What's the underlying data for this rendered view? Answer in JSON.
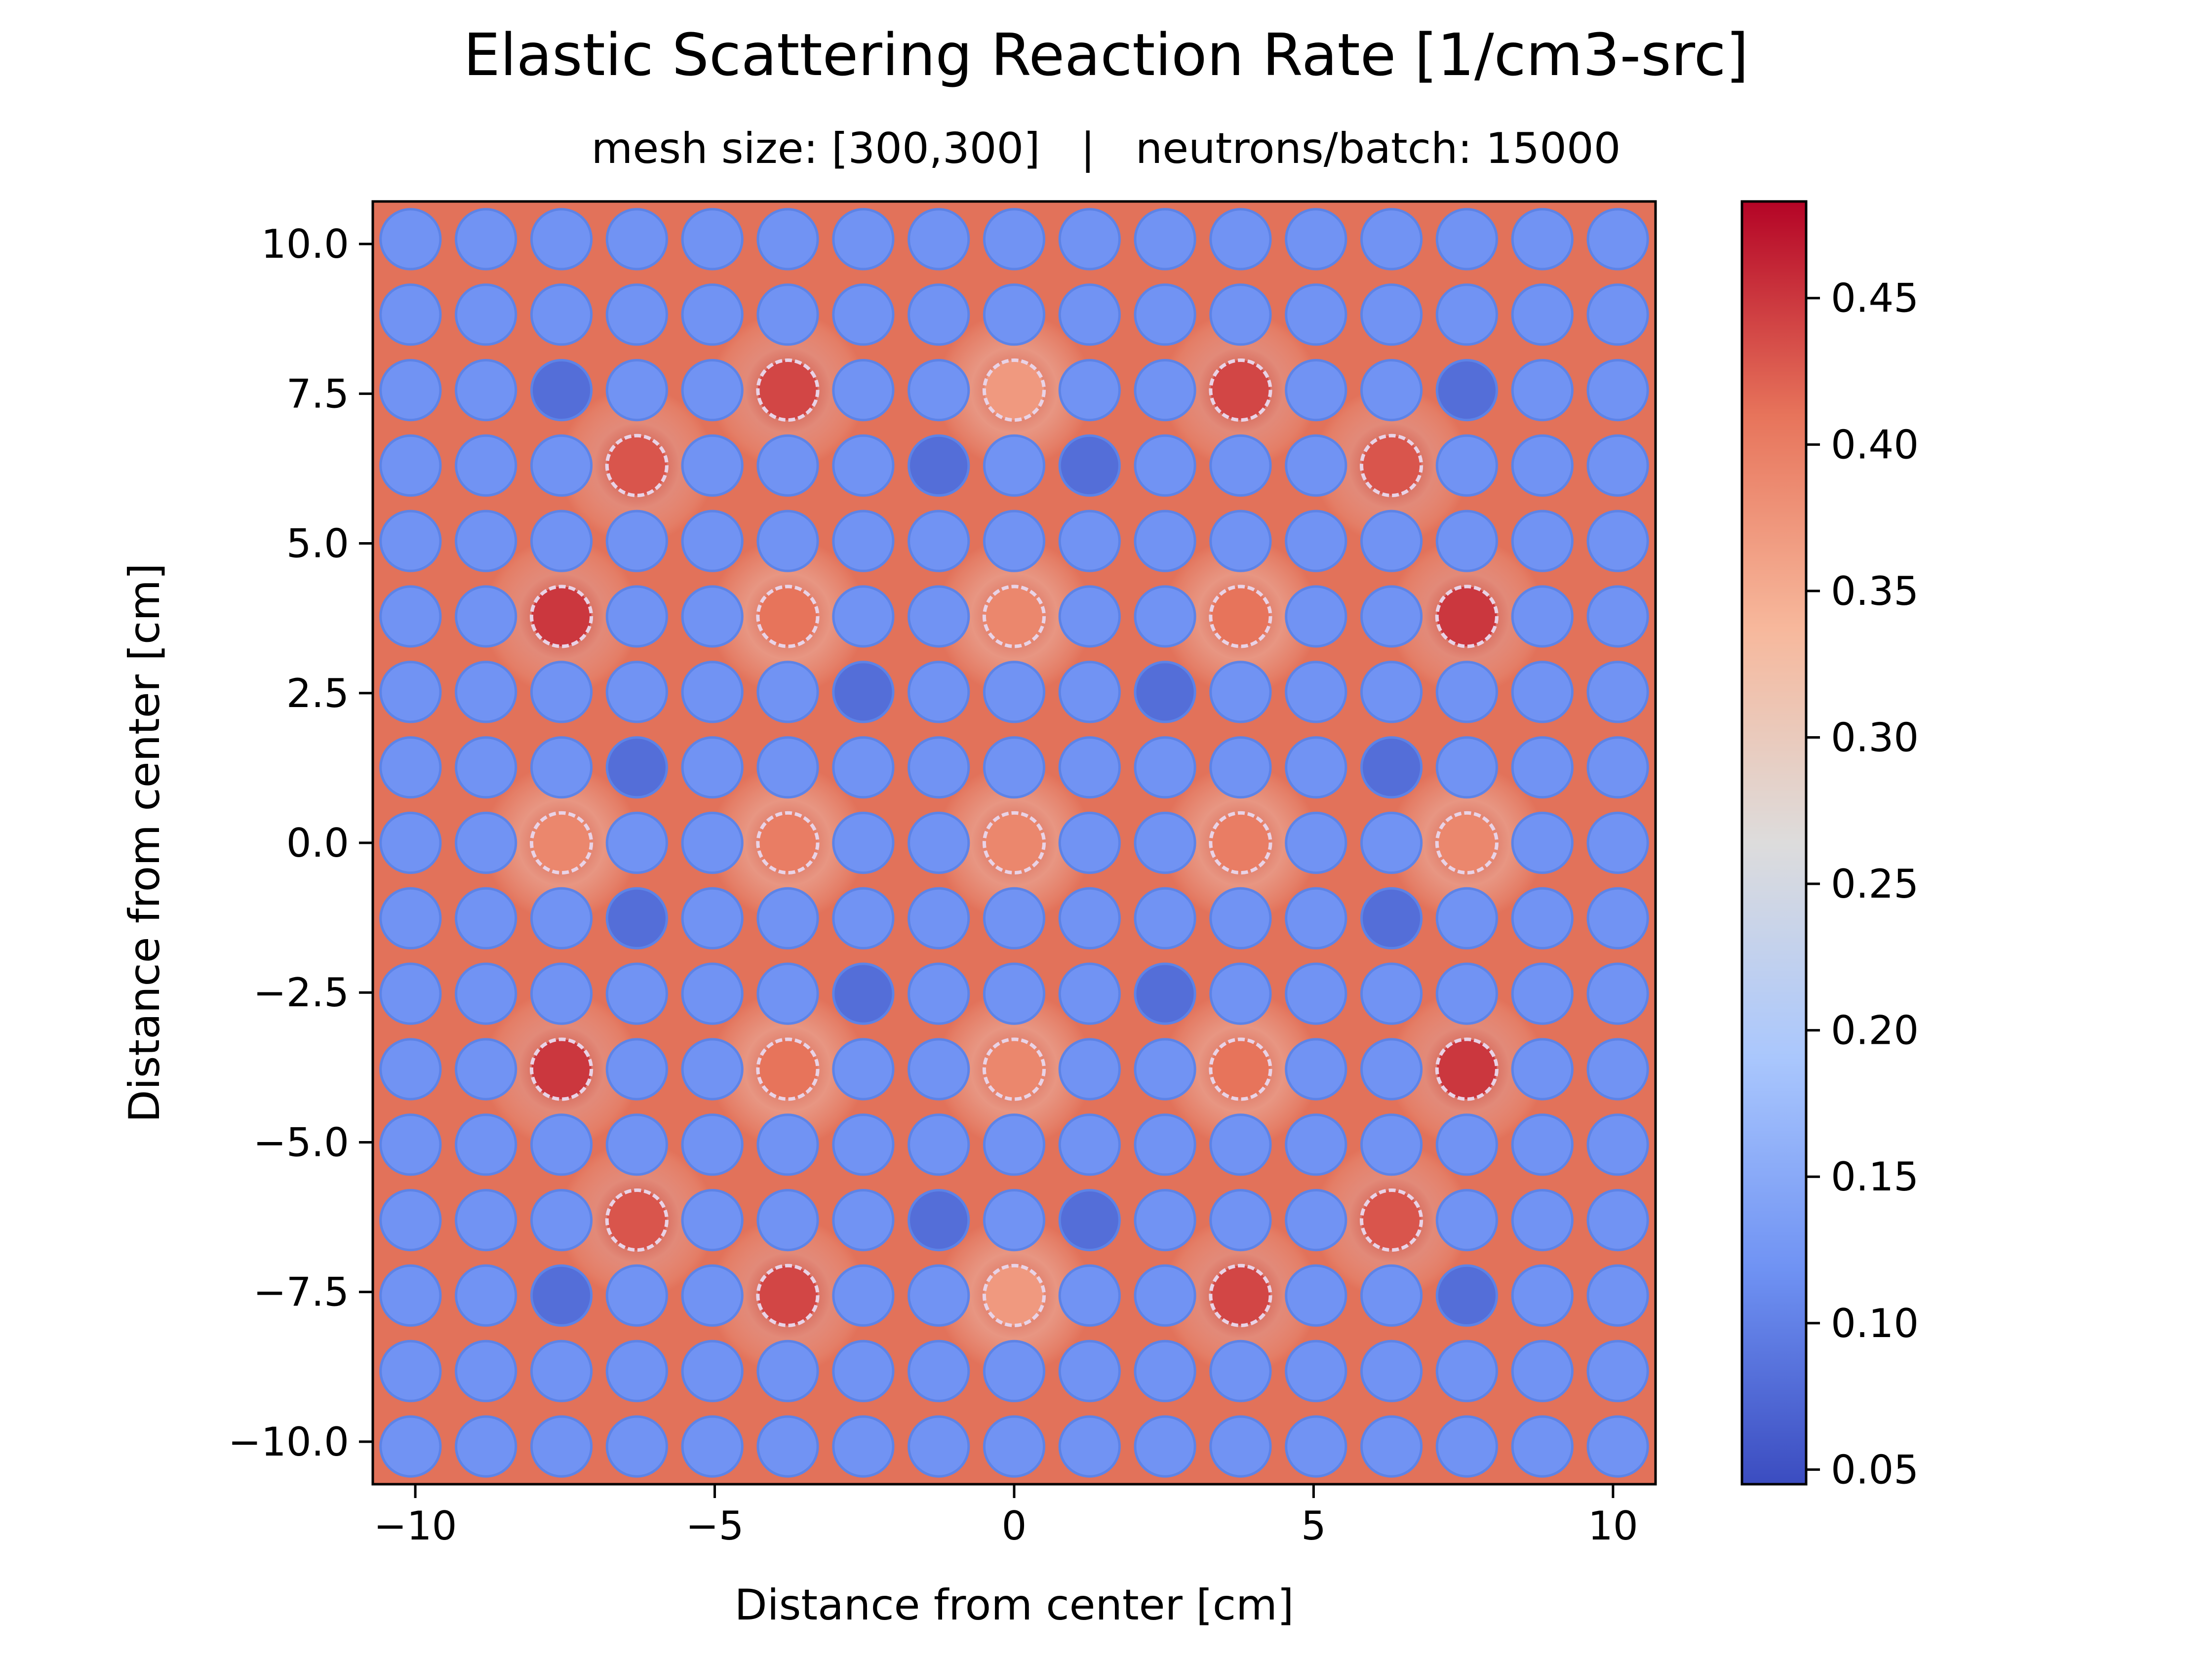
{
  "chart_data": {
    "type": "heatmap",
    "title": "Elastic Scattering Reaction Rate [1/cm3-src]",
    "subtitle": "mesh size: [300,300]   |   neutrons/batch: 15000",
    "xlabel": "Distance from center [cm]",
    "ylabel": "Distance from center [cm]",
    "xlim": [
      -10.71,
      10.71
    ],
    "ylim": [
      -10.71,
      10.71
    ],
    "x_ticks": [
      -10,
      -5,
      0,
      5,
      10
    ],
    "x_tick_labels": [
      "−10",
      "−5",
      "0",
      "5",
      "10"
    ],
    "y_ticks": [
      10.0,
      7.5,
      5.0,
      2.5,
      0.0,
      -2.5,
      -5.0,
      -7.5,
      -10.0
    ],
    "y_tick_labels": [
      "10.0",
      "7.5",
      "5.0",
      "2.5",
      "0.0",
      "−2.5",
      "−5.0",
      "−7.5",
      "−10.0"
    ],
    "colormap": "coolwarm",
    "colorbar": {
      "min": 0.045,
      "max": 0.483,
      "ticks": [
        0.05,
        0.1,
        0.15,
        0.2,
        0.25,
        0.3,
        0.35,
        0.4,
        0.45
      ],
      "tick_labels": [
        "0.05",
        "0.10",
        "0.15",
        "0.20",
        "0.25",
        "0.30",
        "0.35",
        "0.40",
        "0.45"
      ]
    },
    "lattice": {
      "size": 17,
      "pitch_cm": 1.26,
      "pin_radius_cm": 0.5,
      "moderator_value": 0.41,
      "fuel_pin_value": 0.12,
      "guide_tube_positions": [
        [
          2,
          5
        ],
        [
          2,
          8
        ],
        [
          2,
          11
        ],
        [
          3,
          3
        ],
        [
          3,
          13
        ],
        [
          5,
          2
        ],
        [
          5,
          5
        ],
        [
          5,
          8
        ],
        [
          5,
          11
        ],
        [
          5,
          14
        ],
        [
          8,
          2
        ],
        [
          8,
          5
        ],
        [
          8,
          8
        ],
        [
          8,
          11
        ],
        [
          8,
          14
        ],
        [
          11,
          2
        ],
        [
          11,
          5
        ],
        [
          11,
          8
        ],
        [
          11,
          11
        ],
        [
          11,
          14
        ],
        [
          13,
          3
        ],
        [
          13,
          13
        ],
        [
          14,
          5
        ],
        [
          14,
          8
        ],
        [
          14,
          11
        ]
      ],
      "guide_tube_values": [
        0.44,
        0.37,
        0.44,
        0.43,
        0.43,
        0.45,
        0.41,
        0.39,
        0.41,
        0.45,
        0.39,
        0.4,
        0.39,
        0.4,
        0.39,
        0.45,
        0.41,
        0.39,
        0.41,
        0.45,
        0.43,
        0.43,
        0.44,
        0.37,
        0.44
      ],
      "dark_pin_positions": [
        [
          2,
          2
        ],
        [
          2,
          14
        ],
        [
          3,
          7
        ],
        [
          3,
          9
        ],
        [
          6,
          6
        ],
        [
          6,
          10
        ],
        [
          7,
          3
        ],
        [
          7,
          13
        ],
        [
          9,
          3
        ],
        [
          9,
          13
        ],
        [
          10,
          6
        ],
        [
          10,
          10
        ],
        [
          13,
          7
        ],
        [
          13,
          9
        ],
        [
          14,
          2
        ],
        [
          14,
          14
        ]
      ],
      "dark_pin_value": 0.08
    }
  },
  "colors": {
    "cmap_stops": [
      "#3b4cc0",
      "#6f92f3",
      "#aac7fd",
      "#dddcdc",
      "#f7b89c",
      "#e7745b",
      "#b40426"
    ],
    "moderator": "#e2725a",
    "fuel_pin": "#7393ee",
    "dark_pin": "#5271db",
    "guide_tube_hot": "#c8392f",
    "guide_tube_cool": "#e26c56",
    "glow": "#f7d9c8"
  }
}
